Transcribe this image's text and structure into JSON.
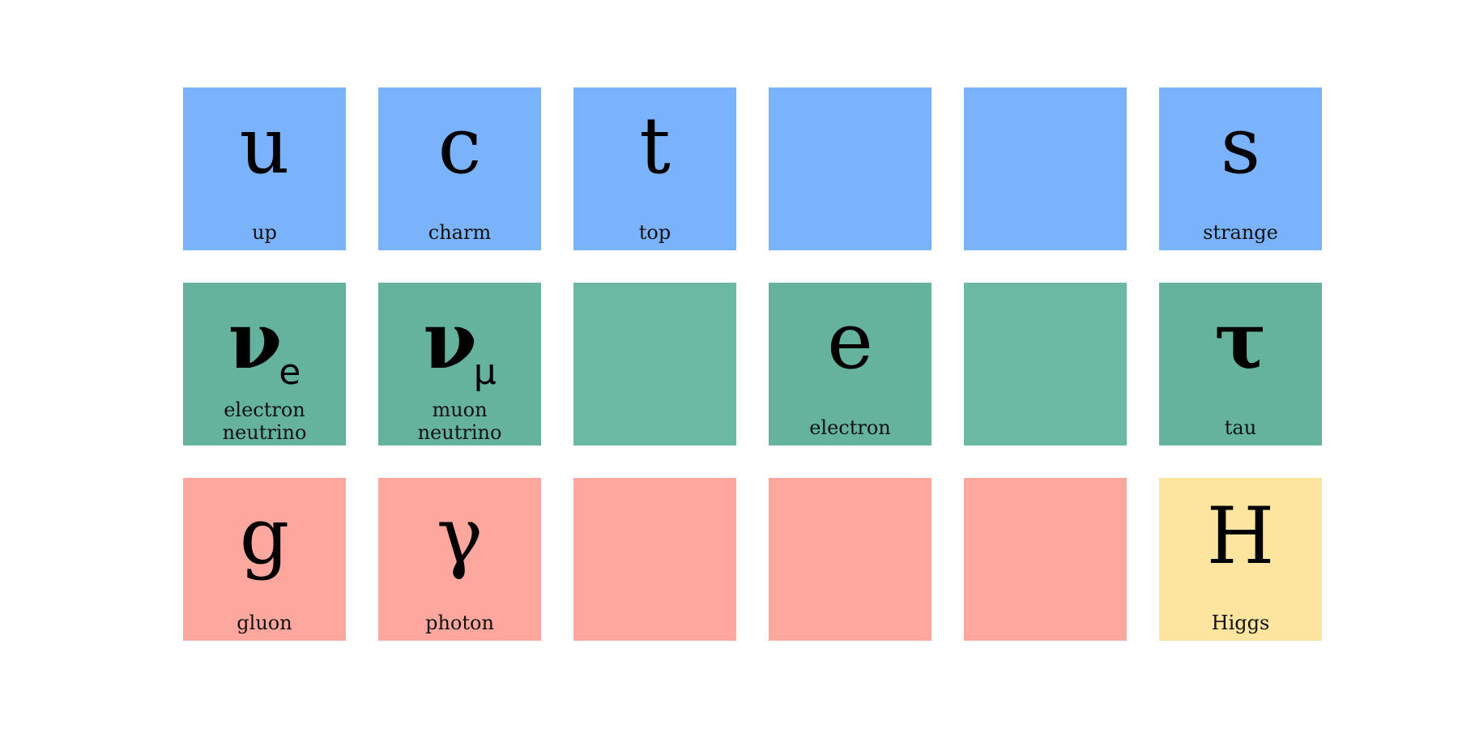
{
  "colors": {
    "quark": "#7bb2fc",
    "lepton": "#65b39c",
    "gauge_boson": "#fea79e",
    "higgs": "#fee59f"
  },
  "row1": {
    "up": {
      "symbol": "u",
      "label": "up"
    },
    "charm": {
      "symbol": "c",
      "label": "charm"
    },
    "top": {
      "symbol": "t",
      "label": "top"
    },
    "strange": {
      "symbol": "s",
      "label": "strange"
    }
  },
  "row2": {
    "electron_neutrino": {
      "symbol": "ν",
      "subscript": "e",
      "label_line1": "electron",
      "label_line2": "neutrino"
    },
    "muon_neutrino": {
      "symbol": "ν",
      "subscript": "μ",
      "label_line1": "muon",
      "label_line2": "neutrino"
    },
    "electron": {
      "symbol": "e",
      "label": "electron"
    },
    "tau": {
      "symbol": "τ",
      "label": "tau"
    }
  },
  "row3": {
    "gluon": {
      "symbol": "g",
      "label": "gluon"
    },
    "photon": {
      "symbol": "γ",
      "label": "photon"
    },
    "higgs": {
      "symbol": "H",
      "label": "Higgs"
    }
  }
}
